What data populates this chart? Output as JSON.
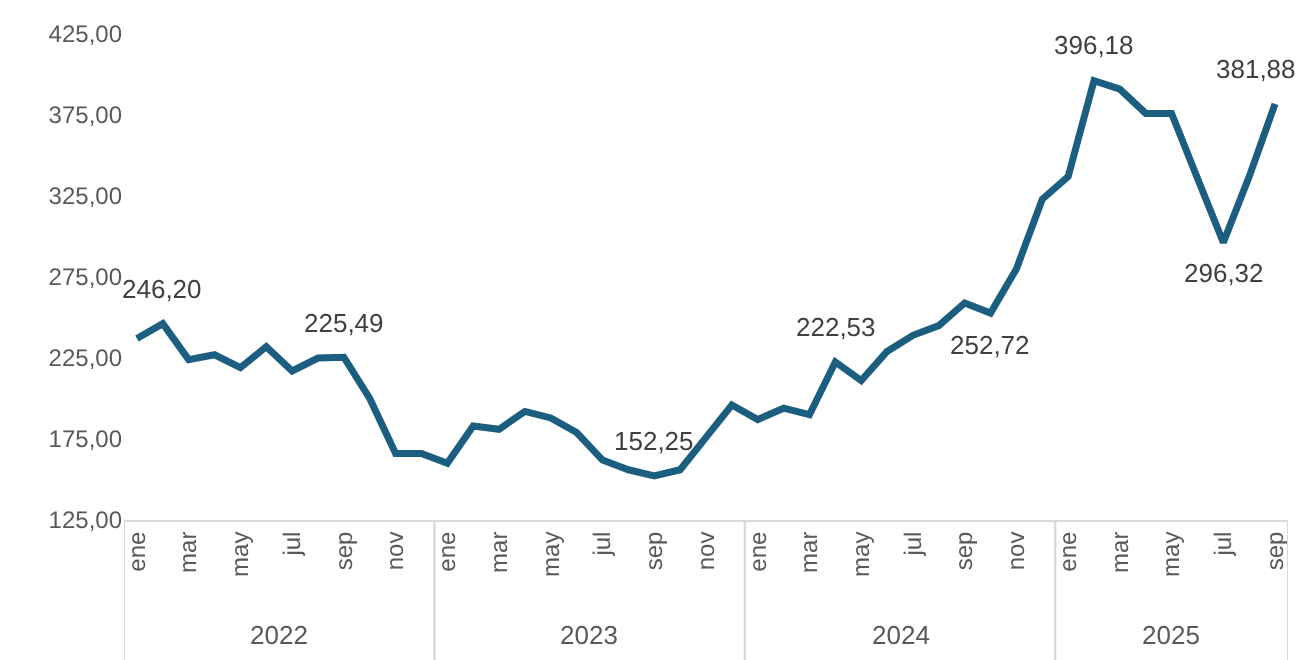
{
  "chart_data": {
    "type": "line",
    "categories": [
      "ene",
      null,
      "mar",
      null,
      "may",
      null,
      "jul",
      null,
      "sep",
      null,
      "nov",
      null,
      "ene",
      null,
      "mar",
      null,
      "may",
      null,
      "jul",
      null,
      "sep",
      null,
      "nov",
      null,
      "ene",
      null,
      "mar",
      null,
      "may",
      null,
      "jul",
      null,
      "sep",
      null,
      "nov",
      null,
      "ene",
      null,
      "mar",
      null,
      "may",
      null,
      "jul",
      null,
      "sep"
    ],
    "series": [
      {
        "color": "#1b5e80",
        "values": [
          237,
          246.2,
          224,
          227,
          219,
          232,
          217,
          225,
          225.49,
          200,
          166,
          166,
          160,
          183,
          181,
          192,
          188,
          179,
          162,
          156,
          152.25,
          156,
          176,
          196,
          187,
          194,
          190,
          222.53,
          211,
          229,
          239,
          245,
          259,
          252.72,
          280,
          323,
          337,
          396.18,
          391,
          376,
          376,
          336,
          296.32,
          337,
          381.88
        ],
        "value_labels": [
          null,
          "246,20",
          null,
          null,
          null,
          null,
          null,
          null,
          "225,49",
          null,
          null,
          null,
          null,
          null,
          null,
          null,
          null,
          null,
          null,
          null,
          "152,25",
          null,
          null,
          null,
          null,
          null,
          null,
          "222,53",
          null,
          null,
          null,
          null,
          null,
          "252,72",
          null,
          null,
          null,
          "396,18",
          null,
          null,
          null,
          null,
          "296,32",
          null,
          "381,88"
        ]
      }
    ],
    "ylim": [
      125,
      425
    ],
    "yticks": [
      {
        "value": 125,
        "label": "125,00"
      },
      {
        "value": 175,
        "label": "175,00"
      },
      {
        "value": 225,
        "label": "225,00"
      },
      {
        "value": 275,
        "label": "275,00"
      },
      {
        "value": 325,
        "label": "325,00"
      },
      {
        "value": 375,
        "label": "375,00"
      },
      {
        "value": 425,
        "label": "425,00"
      }
    ],
    "annotations": [
      "2022",
      "2023",
      "2024",
      "2025"
    ],
    "legend": false,
    "marker": "none",
    "line_style": "solid"
  }
}
